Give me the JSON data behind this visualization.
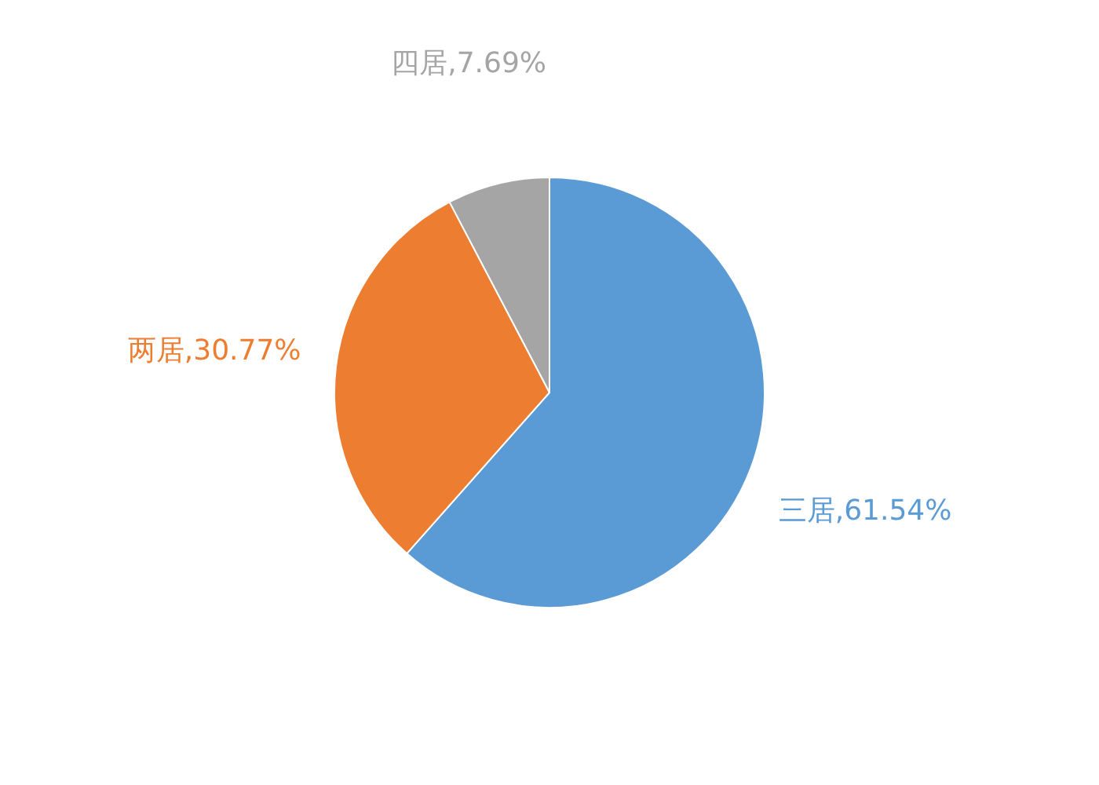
{
  "chart_data": {
    "type": "pie",
    "categories": [
      "三居",
      "两居",
      "四居"
    ],
    "values": [
      61.54,
      30.77,
      7.69
    ],
    "colors": [
      "#5b9bd5",
      "#ed7d31",
      "#a5a5a5"
    ],
    "value_labels": [
      "61.54%",
      "30.77%",
      "7.69%"
    ]
  }
}
